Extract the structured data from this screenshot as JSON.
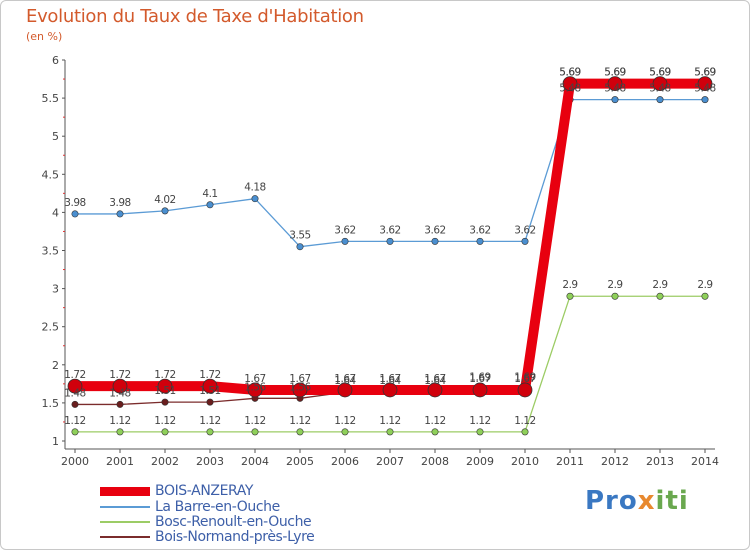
{
  "title": "Evolution du Taux de Taxe d'Habitation",
  "unit": "(en %)",
  "logo": {
    "part1": "Pro",
    "part2": "x",
    "part3": "iti"
  },
  "chart_data": {
    "type": "line",
    "title": "Evolution du Taux de Taxe d'Habitation",
    "ylabel": "(en %)",
    "xlabel": "",
    "x": [
      "2000",
      "2001",
      "2002",
      "2003",
      "2004",
      "2005",
      "2006",
      "2007",
      "2008",
      "2009",
      "2010",
      "2011",
      "2012",
      "2013",
      "2014"
    ],
    "ylim": [
      1,
      6
    ],
    "yticks": [
      "1",
      "1.5",
      "2",
      "2.5",
      "3",
      "3.5",
      "4",
      "4.5",
      "5",
      "5.5",
      "6"
    ],
    "grid": false,
    "legend_position": "bottom-left",
    "series": [
      {
        "name": "BOIS-ANZERAY",
        "color": "#e8000f",
        "values": [
          1.72,
          1.72,
          1.72,
          1.72,
          1.67,
          1.67,
          1.67,
          1.67,
          1.67,
          1.67,
          1.67,
          5.69,
          5.69,
          5.69,
          5.69
        ],
        "labels": [
          "1.72",
          "1.72",
          "1.72",
          "1.72",
          "1.67",
          "1.67",
          "1.67",
          "1.67",
          "1.67",
          "1.67",
          "1.67",
          "5.69",
          "5.69",
          "5.69",
          "5.69"
        ]
      },
      {
        "name": "La Barre-en-Ouche",
        "color": "#5b9bd5",
        "values": [
          3.98,
          3.98,
          4.02,
          4.1,
          4.18,
          3.55,
          3.62,
          3.62,
          3.62,
          3.62,
          3.62,
          5.48,
          5.48,
          5.48,
          5.48
        ],
        "labels": [
          "3.98",
          "3.98",
          "4.02",
          "4.1",
          "4.18",
          "3.55",
          "3.62",
          "3.62",
          "3.62",
          "3.62",
          "3.62",
          "5.48",
          "5.48",
          "5.48",
          "5.48"
        ]
      },
      {
        "name": "Bosc-Renoult-en-Ouche",
        "color": "#9ccc65",
        "values": [
          1.12,
          1.12,
          1.12,
          1.12,
          1.12,
          1.12,
          1.12,
          1.12,
          1.12,
          1.12,
          1.12,
          2.9,
          2.9,
          2.9,
          2.9
        ],
        "labels": [
          "1.12",
          "1.12",
          "1.12",
          "1.12",
          "1.12",
          "1.12",
          "1.12",
          "1.12",
          "1.12",
          "1.12",
          "1.12",
          "2.9",
          "2.9",
          "2.9",
          "2.9"
        ]
      },
      {
        "name": "Bois-Normand-près-Lyre",
        "color": "#7b2c2c",
        "values": [
          1.48,
          1.48,
          1.51,
          1.51,
          1.56,
          1.56,
          1.64,
          1.64,
          1.64,
          1.69,
          1.69,
          5.69,
          5.69,
          5.69,
          5.69
        ],
        "labels": [
          "1.48",
          "1.48",
          "1.51",
          "1.51",
          "1.56",
          "1.56",
          "1.64",
          "1.64",
          "1.64",
          "1.69",
          "1.69",
          "5.69",
          "5.69",
          "5.69",
          "5.69"
        ]
      }
    ]
  }
}
